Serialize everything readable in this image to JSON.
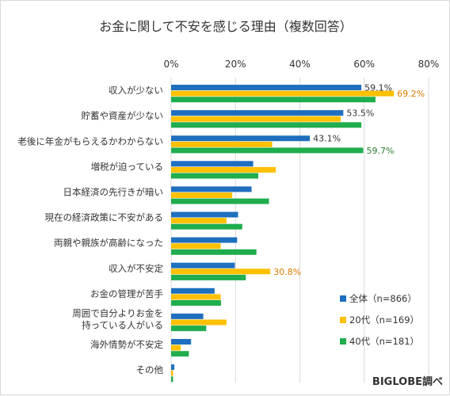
{
  "chart_data": {
    "type": "bar",
    "orientation": "horizontal",
    "title": "お金に関して不安を感じる理由（複数回答）",
    "xlim": [
      0,
      80
    ],
    "ticks": [
      "0%",
      "20%",
      "40%",
      "60%",
      "80%"
    ],
    "tick_values": [
      0,
      20,
      40,
      60,
      80
    ],
    "grid": true,
    "legend_position": "bottom-right",
    "categories": [
      "収入が少ない",
      "貯蓄や資産が少ない",
      "老後に年金がもらえるかわからない",
      "増税が迫っている",
      "日本経済の先行きが暗い",
      "現在の経済政策に不安がある",
      "両親や親族が高齢になった",
      "収入が不安定",
      "お金の管理が苦手",
      "周囲で自分よりお金を\n持っている人がいる",
      "海外情勢が不安定",
      "その他"
    ],
    "series": [
      {
        "name": "全体（n=866）",
        "color": "#1f6fbf",
        "values": [
          59.1,
          53.5,
          43.1,
          25.5,
          25.0,
          20.8,
          20.5,
          19.8,
          13.5,
          10.0,
          6.2,
          1.0
        ]
      },
      {
        "name": "20代（n=169）",
        "color": "#ffc000",
        "values": [
          69.2,
          52.7,
          31.4,
          32.5,
          19.0,
          17.2,
          15.4,
          30.8,
          15.4,
          17.2,
          3.0,
          0.6
        ]
      },
      {
        "name": "40代（n=181）",
        "color": "#1fad4e",
        "values": [
          63.5,
          59.1,
          59.7,
          27.1,
          30.4,
          22.1,
          26.5,
          23.2,
          15.5,
          10.9,
          5.5,
          0.6
        ]
      }
    ],
    "data_labels": [
      {
        "series": 0,
        "category": 0,
        "text": "59.1%",
        "color": "#333333"
      },
      {
        "series": 1,
        "category": 0,
        "text": "69.2%",
        "color": "#e07b00"
      },
      {
        "series": 0,
        "category": 1,
        "text": "53.5%",
        "color": "#333333"
      },
      {
        "series": 0,
        "category": 2,
        "text": "43.1%",
        "color": "#333333"
      },
      {
        "series": 2,
        "category": 2,
        "text": "59.7%",
        "color": "#2e7d32"
      },
      {
        "series": 1,
        "category": 7,
        "text": "30.8%",
        "color": "#e07b00"
      }
    ]
  },
  "credit": "BIGLOBE調べ"
}
